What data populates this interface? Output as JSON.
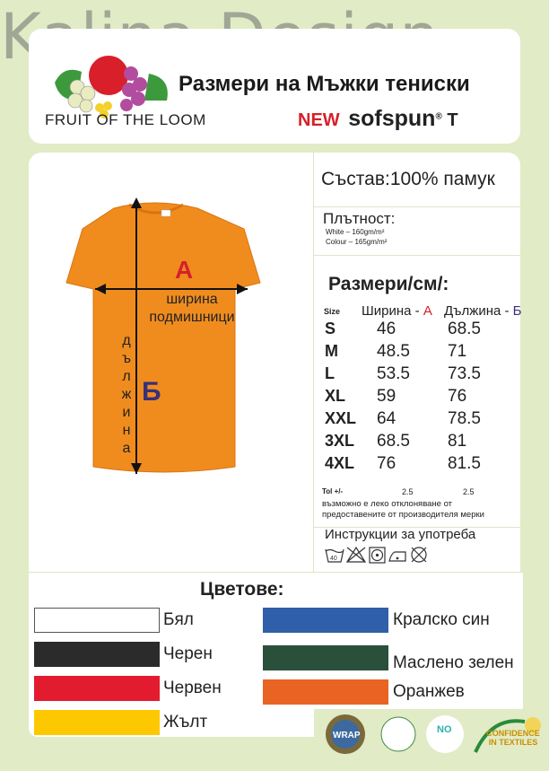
{
  "watermark": "Kalina Design",
  "header": {
    "brand": "FRUIT OF THE LOOM",
    "title": "Размери на Мъжки тениски",
    "new_label": "NEW",
    "product": "sofspun",
    "product_suffix": "T",
    "new_color": "#d6202b"
  },
  "shirt": {
    "color": "#f08c1e",
    "label_a": "A",
    "label_b": "Б",
    "width_label": "ширина подмишници",
    "length_label": "дължина"
  },
  "composition": "Състав:100% памук",
  "density": {
    "title": "Плътност:",
    "white": "White – 160gm/m²",
    "colour": "Colour – 165gm/m²"
  },
  "sizes": {
    "title": "Размери/см/:",
    "col_size": "Size",
    "col_width": "Ширина - ",
    "col_width_mark": "А",
    "col_length": "Дължина - ",
    "col_length_mark": "Б",
    "rows": [
      {
        "size": "S",
        "width": "46",
        "length": "68.5"
      },
      {
        "size": "M",
        "width": "48.5",
        "length": "71"
      },
      {
        "size": "L",
        "width": "53.5",
        "length": "73.5"
      },
      {
        "size": "XL",
        "width": "59",
        "length": "76"
      },
      {
        "size": "XXL",
        "width": "64",
        "length": "78.5"
      },
      {
        "size": "3XL",
        "width": "68.5",
        "length": "81"
      },
      {
        "size": "4XL",
        "width": "76",
        "length": "81.5"
      }
    ],
    "tol_label": "Tol +/-",
    "tol_width": "2.5",
    "tol_length": "2.5",
    "note": "възможно е леко отклоняване от предоставените от производителя мерки"
  },
  "care": {
    "title": "Инструкции за употреба",
    "icons": [
      "wash-40-icon",
      "no-bleach-icon",
      "tumble-dry-icon",
      "iron-low-icon",
      "no-dry-clean-icon"
    ],
    "wash_temp": "40"
  },
  "colors": {
    "title": "Цветове:",
    "items": [
      {
        "name": "Бял",
        "hex": "#ffffff"
      },
      {
        "name": "Черен",
        "hex": "#2b2b2b"
      },
      {
        "name": "Червен",
        "hex": "#e31b2f"
      },
      {
        "name": "Жълт",
        "hex": "#fec800"
      },
      {
        "name": "Кралско син",
        "hex": "#2e5fa8"
      },
      {
        "name": "Маслено зелен",
        "hex": "#2a4f3a"
      },
      {
        "name": "Оранжев",
        "hex": "#e96422"
      }
    ]
  },
  "logos": {
    "wrap": "WRAP",
    "no_child": "NO",
    "confidence": "CONFIDENCE IN TEXTILES"
  }
}
